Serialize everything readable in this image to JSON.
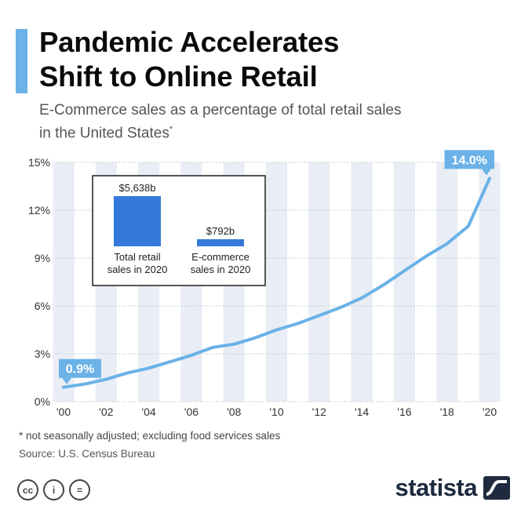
{
  "header": {
    "title": "Pandemic Accelerates\nShift to Online Retail",
    "subtitle": "E-Commerce sales as a percentage of total retail sales\nin the United States",
    "subtitle_marker": "*"
  },
  "chart_data": {
    "type": "line",
    "title": "Pandemic Accelerates Shift to Online Retail",
    "subtitle": "E-Commerce sales as a percentage of total retail sales in the United States",
    "x": [
      2000,
      2001,
      2002,
      2003,
      2004,
      2005,
      2006,
      2007,
      2008,
      2009,
      2010,
      2011,
      2012,
      2013,
      2014,
      2015,
      2016,
      2017,
      2018,
      2019,
      2020
    ],
    "series": [
      {
        "name": "E-Commerce share of retail sales (%)",
        "values": [
          0.9,
          1.1,
          1.4,
          1.8,
          2.1,
          2.5,
          2.9,
          3.4,
          3.6,
          4.0,
          4.5,
          4.9,
          5.4,
          5.9,
          6.5,
          7.3,
          8.2,
          9.1,
          9.9,
          11.0,
          14.0
        ],
        "color": "#6ab2e7"
      }
    ],
    "ylim": [
      0,
      15
    ],
    "yticks": [
      0,
      3,
      6,
      9,
      12,
      15
    ],
    "ytick_labels": [
      "0%",
      "3%",
      "6%",
      "9%",
      "12%",
      "15%"
    ],
    "xtick_labels": [
      "'00",
      "'02",
      "'04",
      "'06",
      "'08",
      "'10",
      "'12",
      "'14",
      "'16",
      "'18",
      "'20"
    ],
    "xlabel": "",
    "ylabel": "",
    "grid": true,
    "annotations": [
      {
        "x": 2000,
        "label": "0.9%"
      },
      {
        "x": 2020,
        "label": "14.0%"
      }
    ],
    "inset": {
      "type": "bar",
      "categories": [
        "Total retail\nsales in 2020",
        "E-commerce\nsales in 2020"
      ],
      "values": [
        5638,
        792
      ],
      "value_labels": [
        "$5,638b",
        "$792b"
      ],
      "units": "billion USD",
      "color": "#3579dc"
    }
  },
  "footer": {
    "footnote": "* not seasonally adjusted; excluding food services sales",
    "source": "Source: U.S. Census Bureau",
    "license_icons": [
      "cc",
      "by",
      "nd"
    ],
    "license_labels": [
      "cc",
      "i",
      "="
    ],
    "brand": "statista"
  },
  "colors": {
    "accent": "#6ab2e7",
    "line": "#6ab2e7",
    "inset_bar": "#3579dc",
    "stripe": "#e9edf5",
    "brand_dark": "#1e2a3e"
  }
}
